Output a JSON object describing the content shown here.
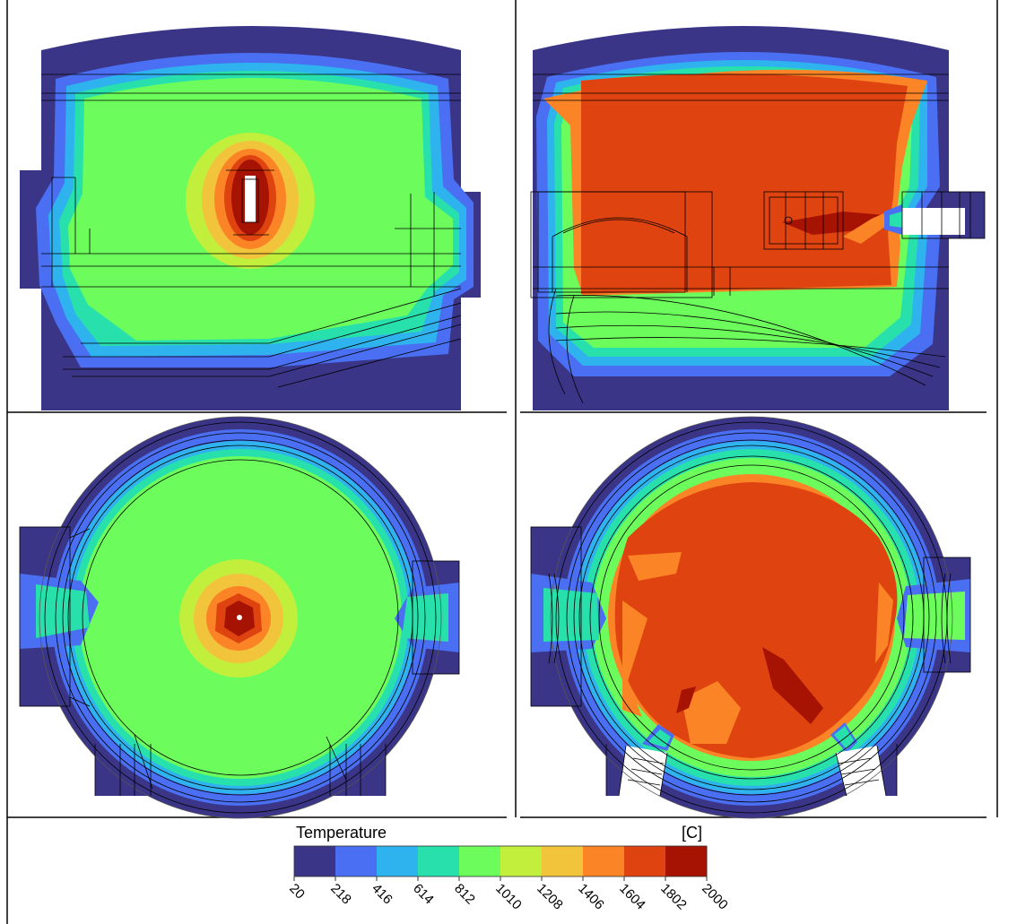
{
  "legend": {
    "title": "Temperature",
    "unit": "[C]",
    "ticks": [
      "20",
      "218",
      "416",
      "614",
      "812",
      "1010",
      "1208",
      "1406",
      "1604",
      "1802",
      "2000"
    ],
    "colors": [
      "#3a3587",
      "#4a6ff2",
      "#2fb3ee",
      "#27e0ac",
      "#6cfd5d",
      "#c2ef3c",
      "#f2c43c",
      "#fa8426",
      "#df430f",
      "#a61303"
    ]
  },
  "panels": [
    {
      "view": "side",
      "case": "central"
    },
    {
      "view": "side",
      "case": "lateral"
    },
    {
      "view": "top",
      "case": "central"
    },
    {
      "view": "top",
      "case": "lateral"
    }
  ]
}
